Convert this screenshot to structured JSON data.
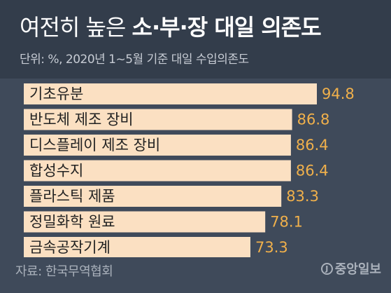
{
  "header": {
    "title_light": "여전히 높은",
    "title_bold": "소·부·장 대일 의존도",
    "subtitle": "단위: %, 2020년 1~5월 기준 대일 수입의존도"
  },
  "footer": {
    "source": "자료: 한국무역협회",
    "brand_mark": "J",
    "brand_name": "중앙일보"
  },
  "colors": {
    "bar": "#fbe0c2",
    "value": "#f0b04b",
    "background": "#3f4a5a",
    "header": "#333d4b"
  },
  "chart_data": {
    "type": "bar",
    "orientation": "horizontal",
    "categories": [
      "기초유분",
      "반도체 제조 장비",
      "디스플레이 제조 장비",
      "합성수지",
      "플라스틱 제품",
      "정밀화학 원료",
      "금속공작기계"
    ],
    "values": [
      94.8,
      86.8,
      86.4,
      86.4,
      83.3,
      78.1,
      73.3
    ],
    "value_labels": [
      "94.8",
      "86.8",
      "86.4",
      "86.4",
      "83.3",
      "78.1",
      "73.3"
    ],
    "xlim": [
      0,
      100
    ],
    "grid": false,
    "legend": false
  }
}
